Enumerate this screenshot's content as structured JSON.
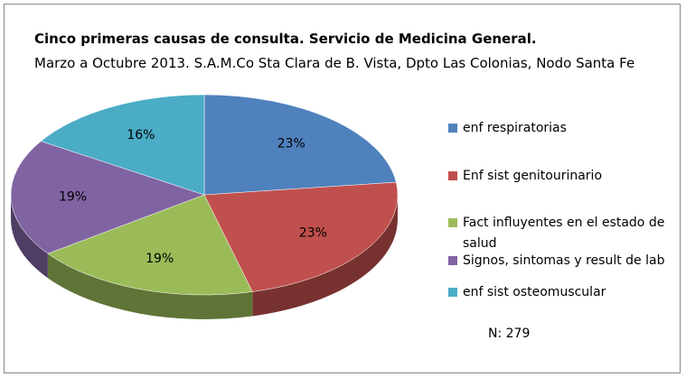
{
  "chart_data": {
    "type": "pie",
    "title": "Cinco primeras causas de consulta. Servicio de Medicina General.",
    "subtitle": "Marzo a Octubre 2013. S.A.M.Co Sta Clara de B. Vista, Dpto Las Colonias, Nodo Santa Fe",
    "categories": [
      "enf respiratorias",
      "Enf sist genitourinario",
      "Fact influyentes en el estado de salud",
      "Signos, sintomas y result de lab",
      "enf sist osteomuscular"
    ],
    "values": [
      23,
      23,
      19,
      19,
      16
    ],
    "value_labels": [
      "23%",
      "23%",
      "19%",
      "19%",
      "16%"
    ],
    "colors": [
      "#4f81bd",
      "#c0504d",
      "#9bbb59",
      "#8064a2",
      "#4bacc6"
    ],
    "legend": "right",
    "annotation": "N: 279"
  }
}
